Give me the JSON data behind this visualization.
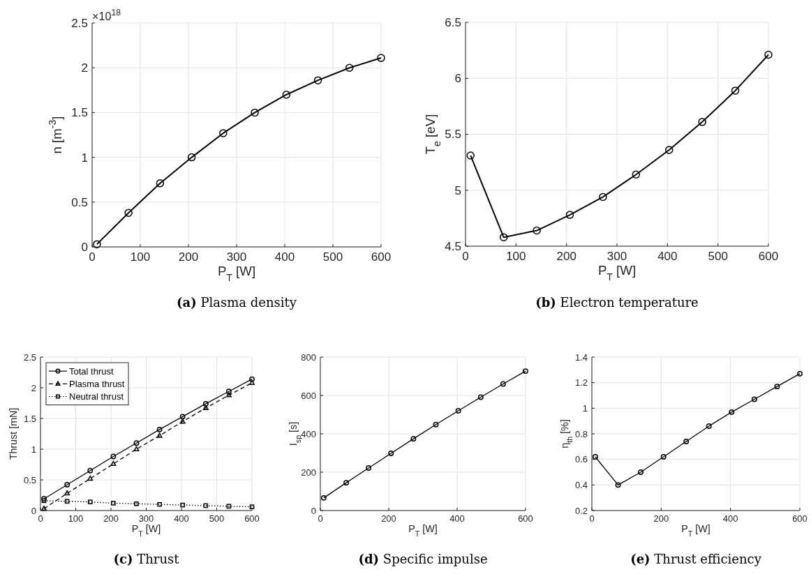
{
  "chart_data": [
    {
      "type": "line",
      "title": "(a) Plasma density",
      "xlabel": "P$_{T}$ [W]",
      "ylabel": "n [m$^{-3}$]",
      "annotations": [
        "×10$^{18}$"
      ],
      "x": [
        10,
        75.6,
        141.1,
        206.7,
        272.2,
        337.8,
        403.3,
        468.9,
        534.4,
        600
      ],
      "xlim": [
        0,
        600
      ],
      "xticks": [
        0,
        100,
        200,
        300,
        400,
        500,
        600
      ],
      "ylim": [
        0,
        2.5
      ],
      "yticks": [
        0,
        0.5,
        1,
        1.5,
        2,
        2.5
      ],
      "grid": true,
      "marker": "circle",
      "line_style": "solid",
      "series": [
        {
          "color": "#000000",
          "values": [
            0.03,
            0.38,
            0.71,
            1.0,
            1.27,
            1.5,
            1.7,
            1.86,
            2.0,
            2.11
          ]
        }
      ]
    },
    {
      "type": "line",
      "title": "(b) Electron temperature",
      "xlabel": "P$_{T}$ [W]",
      "ylabel": "T$_{e}$ [eV]",
      "x": [
        10,
        75.6,
        141.1,
        206.7,
        272.2,
        337.8,
        403.3,
        468.9,
        534.4,
        600
      ],
      "xlim": [
        0,
        600
      ],
      "xticks": [
        0,
        100,
        200,
        300,
        400,
        500,
        600
      ],
      "ylim": [
        4.5,
        6.5
      ],
      "yticks": [
        4.5,
        5,
        5.5,
        6,
        6.5
      ],
      "grid": true,
      "marker": "circle",
      "line_style": "solid",
      "series": [
        {
          "color": "#000000",
          "values": [
            5.31,
            4.58,
            4.64,
            4.78,
            4.94,
            5.14,
            5.36,
            5.61,
            5.89,
            6.21
          ]
        }
      ]
    },
    {
      "type": "line",
      "title": "(c) Thrust",
      "xlabel": "P$_{T}$ [W]",
      "ylabel": "Thrust [mN]",
      "x": [
        10,
        75.6,
        141.1,
        206.7,
        272.2,
        337.8,
        403.3,
        468.9,
        534.4,
        600
      ],
      "xlim": [
        0,
        600
      ],
      "xticks": [
        0,
        100,
        200,
        300,
        400,
        500,
        600
      ],
      "ylim": [
        0,
        2.5
      ],
      "yticks": [
        0,
        0.5,
        1,
        1.5,
        2,
        2.5
      ],
      "grid": true,
      "legend": "top left",
      "series": [
        {
          "name": "Total thrust",
          "color": "#000000",
          "marker": "circle",
          "line_style": "solid",
          "values": [
            0.19,
            0.42,
            0.65,
            0.88,
            1.1,
            1.32,
            1.53,
            1.74,
            1.94,
            2.14
          ]
        },
        {
          "name": "Plasma thrust",
          "color": "#000000",
          "marker": "triangle",
          "line_style": "dashed",
          "values": [
            0.03,
            0.28,
            0.52,
            0.76,
            1.0,
            1.22,
            1.45,
            1.67,
            1.88,
            2.08
          ]
        },
        {
          "name": "Neutral thrust",
          "color": "#000000",
          "marker": "square",
          "line_style": "dotted",
          "values": [
            0.16,
            0.15,
            0.14,
            0.12,
            0.11,
            0.1,
            0.09,
            0.08,
            0.07,
            0.06
          ]
        }
      ]
    },
    {
      "type": "line",
      "title": "(d) Specific impulse",
      "xlabel": "P$_{T}$ [W]",
      "ylabel": "I$_{sp}$ [s]",
      "x": [
        10,
        75.6,
        141.1,
        206.7,
        272.2,
        337.8,
        403.3,
        468.9,
        534.4,
        600
      ],
      "xlim": [
        0,
        600
      ],
      "xticks": [
        0,
        200,
        400,
        600
      ],
      "ylim": [
        0,
        800
      ],
      "yticks": [
        0,
        200,
        400,
        600,
        800
      ],
      "grid": true,
      "marker": "circle",
      "line_style": "solid",
      "series": [
        {
          "color": "#000000",
          "values": [
            66,
            145,
            222,
            298,
            374,
            448,
            520,
            591,
            660,
            727
          ]
        }
      ]
    },
    {
      "type": "line",
      "title": "(e) Thrust efficiency",
      "xlabel": "P$_{T}$ [W]",
      "ylabel": "η$_{th}$ [%]",
      "x": [
        10,
        75.6,
        141.1,
        206.7,
        272.2,
        337.8,
        403.3,
        468.9,
        534.4,
        600
      ],
      "xlim": [
        0,
        600
      ],
      "xticks": [
        0,
        200,
        400,
        600
      ],
      "ylim": [
        0.2,
        1.4
      ],
      "yticks": [
        0.2,
        0.4,
        0.6,
        0.8,
        1,
        1.2,
        1.4
      ],
      "grid": true,
      "marker": "circle",
      "line_style": "solid",
      "series": [
        {
          "color": "#000000",
          "values": [
            0.62,
            0.4,
            0.5,
            0.62,
            0.74,
            0.86,
            0.97,
            1.07,
            1.17,
            1.27
          ]
        }
      ]
    }
  ]
}
